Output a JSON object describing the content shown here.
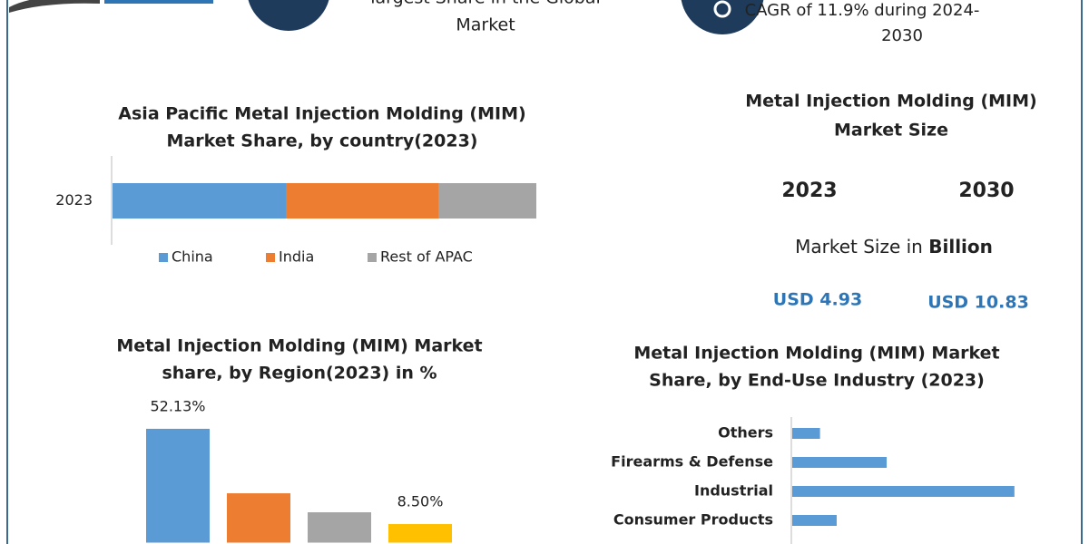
{
  "header": {
    "left_text": [
      "largest Share in the Global",
      "Market"
    ],
    "right_text": [
      "CAGR of 11.9% during 2024-",
      "2030"
    ]
  },
  "market_size": {
    "title": [
      "Metal Injection Molding (MIM)",
      "Market Size"
    ],
    "years": [
      "2023",
      "2030"
    ],
    "unit_prefix": "Market Size in",
    "unit": "Billion",
    "values": [
      "USD 4.93",
      "USD 10.83"
    ]
  },
  "chart_data": [
    {
      "type": "bar",
      "orientation": "horizontal",
      "stacked": true,
      "title": [
        "Asia Pacific Metal Injection Molding (MIM)",
        "Market Share, by country(2023)"
      ],
      "categories": [
        "2023"
      ],
      "series": [
        {
          "name": "China",
          "color": "#5b9bd5",
          "values": [
            41
          ]
        },
        {
          "name": "India",
          "color": "#ed7d31",
          "values": [
            36
          ]
        },
        {
          "name": "Rest of APAC",
          "color": "#a5a5a5",
          "values": [
            23
          ]
        }
      ],
      "xlim": [
        0,
        100
      ],
      "legend": "bottom"
    },
    {
      "type": "bar",
      "orientation": "vertical",
      "title": [
        "Metal Injection Molding (MIM) Market",
        "share, by Region(2023) in %"
      ],
      "categories": [
        null,
        null,
        null,
        null
      ],
      "values": [
        52.13,
        22.6,
        13.9,
        8.5
      ],
      "value_labels": [
        "52.13%",
        null,
        null,
        "8.50%"
      ],
      "colors": [
        "#5b9bd5",
        "#ed7d31",
        "#a5a5a5",
        "#ffc000"
      ],
      "ylim": [
        0,
        60
      ]
    },
    {
      "type": "bar",
      "orientation": "horizontal",
      "title": [
        "Metal Injection Molding (MIM) Market",
        "Share, by End-Use Industry (2023)"
      ],
      "categories": [
        "Others",
        "Firearms & Defense",
        "Industrial",
        "Consumer Products"
      ],
      "values": [
        5,
        17,
        40,
        8
      ],
      "color": "#5b9bd5",
      "xlim": [
        0,
        50
      ]
    }
  ]
}
